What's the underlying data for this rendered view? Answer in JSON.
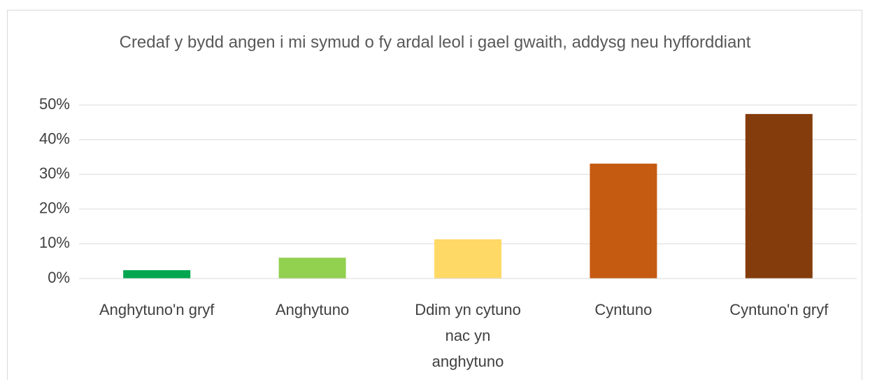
{
  "chart_data": {
    "type": "bar",
    "title": "Credaf y bydd angen i mi symud o fy ardal leol i gael gwaith, addysg neu hyfforddiant",
    "categories": [
      "Anghytuno'n gryf",
      "Anghytuno",
      "Ddim yn cytuno nac yn anghytuno",
      "Cyntuno",
      "Cyntuno'n gryf"
    ],
    "values": [
      2.4,
      6.0,
      11.3,
      33.1,
      47.4
    ],
    "colors": [
      "#00a650",
      "#92d050",
      "#ffd966",
      "#c55a11",
      "#843c0c"
    ],
    "ylim": [
      0,
      50
    ],
    "yticks": [
      {
        "value": 0,
        "label": "0%"
      },
      {
        "value": 10,
        "label": "10%"
      },
      {
        "value": 20,
        "label": "20%"
      },
      {
        "value": 30,
        "label": "30%"
      },
      {
        "value": 40,
        "label": "40%"
      },
      {
        "value": 50,
        "label": "50%"
      }
    ],
    "grid": true
  }
}
